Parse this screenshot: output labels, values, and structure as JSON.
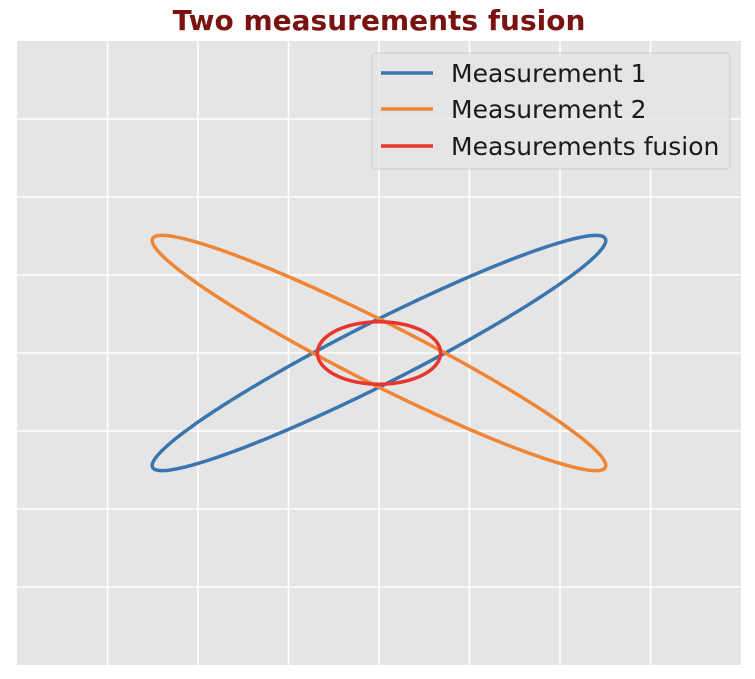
{
  "chart_data": {
    "type": "line",
    "title": "Two measurements fusion",
    "xlabel": "",
    "ylabel": "",
    "xlim": [
      -4,
      4
    ],
    "ylim": [
      -4,
      4
    ],
    "grid": true,
    "ticks_visible": false,
    "legend": {
      "placement": "top-right",
      "entries": [
        "Measurement 1",
        "Measurement 2",
        "Measurements fusion"
      ]
    },
    "series": [
      {
        "name": "Measurement 1",
        "color": "#3b75af",
        "kind": "ellipse",
        "center": [
          0,
          0
        ],
        "semi_major": 2.9,
        "semi_minor": 0.38,
        "rotation_deg": 30.5
      },
      {
        "name": "Measurement 2",
        "color": "#ef8636",
        "kind": "ellipse",
        "center": [
          0,
          0
        ],
        "semi_major": 2.9,
        "semi_minor": 0.38,
        "rotation_deg": -30.5
      },
      {
        "name": "Measurements fusion",
        "color": "#e8352e",
        "kind": "ellipse",
        "center": [
          0,
          0
        ],
        "semi_major": 0.68,
        "semi_minor": 0.4,
        "rotation_deg": 0
      }
    ]
  }
}
